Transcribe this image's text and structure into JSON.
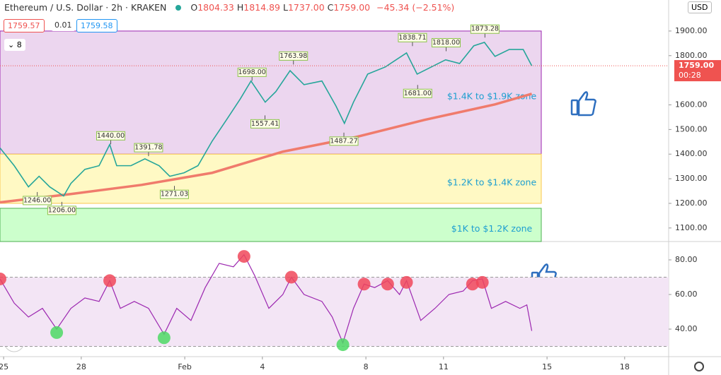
{
  "header": {
    "symbol": "Ethereum / U.S. Dollar · 2h · KRAKEN",
    "ohlc": [
      {
        "key": "O",
        "value": "1804.33"
      },
      {
        "key": "H",
        "value": "1814.89"
      },
      {
        "key": "L",
        "value": "1737.00"
      },
      {
        "key": "C",
        "value": "1759.00"
      }
    ],
    "change": "−45.34 (−2.51%)",
    "bid": "1759.57",
    "spread": "0.01",
    "ask": "1759.58",
    "interval": "8",
    "currency": "USD",
    "countdown": "00:28"
  },
  "chart_data": [
    {
      "type": "line",
      "x": [
        -0.14,
        0.41,
        0.96,
        1.37,
        1.78,
        2.32,
        2.6,
        3.14,
        3.69,
        4.1,
        4.37,
        4.92,
        5.46,
        6.01,
        6.42,
        6.97,
        7.51,
        8.06,
        8.61,
        9.15,
        9.56,
        10.11,
        10.52,
        11.07,
        11.61,
        12.3,
        12.84,
        13.17,
        13.52,
        14.07,
        14.75,
        15.57,
        15.98,
        16.53,
        17.08,
        17.62,
        18.17,
        18.58,
        18.99,
        19.54,
        20.08,
        20.41
      ],
      "series": [
        {
          "color": "#26a69a",
          "values": [
            1425,
            1353,
            1267,
            1310,
            1267,
            1230,
            1281,
            1338,
            1353,
            1439,
            1353,
            1353,
            1381,
            1353,
            1310,
            1324,
            1353,
            1453,
            1539,
            1625,
            1697,
            1611,
            1654,
            1739,
            1682,
            1697,
            1596,
            1525,
            1611,
            1725,
            1754,
            1811,
            1725,
            1754,
            1783,
            1768,
            1840,
            1854,
            1797,
            1825,
            1825,
            1759
          ]
        }
      ],
      "ma": {
        "color": "#f07b6c",
        "x": [
          -0.14,
          2.6,
          5.33,
          8.06,
          10.79,
          13.52,
          16.26,
          18.99,
          20.41
        ],
        "values": [
          1204,
          1238,
          1275,
          1324,
          1410,
          1467,
          1539,
          1602,
          1645
        ]
      },
      "zones": [
        {
          "label": "$1.4K to $1.9K zone",
          "low": 1400,
          "high": 1900,
          "color": "#ecd6ef",
          "border": "#9c27b0"
        },
        {
          "label": "$1.2K to $1.4K zone",
          "low": 1200,
          "high": 1400,
          "color": "#fff9c4",
          "border": "#f9c74f"
        },
        {
          "label": "$1K to $1.2K zone",
          "low": 1000,
          "high": 1180,
          "color": "#ccffcc",
          "border": "#4caf50"
        }
      ],
      "annotations": [
        {
          "x": 1.3,
          "value": 1246,
          "label": "1246.00"
        },
        {
          "x": 2.25,
          "value": 1206,
          "label": "1206.00"
        },
        {
          "x": 4.14,
          "value": 1440,
          "label": "1440.00"
        },
        {
          "x": 5.6,
          "value": 1391.78,
          "label": "1391.78"
        },
        {
          "x": 6.6,
          "value": 1271.03,
          "label": "1271.03"
        },
        {
          "x": 9.6,
          "value": 1698,
          "label": "1698.00"
        },
        {
          "x": 10.1,
          "value": 1557.41,
          "label": "1557.41"
        },
        {
          "x": 11.2,
          "value": 1763.98,
          "label": "1763.98"
        },
        {
          "x": 13.15,
          "value": 1487.27,
          "label": "1487.27"
        },
        {
          "x": 15.8,
          "value": 1838.71,
          "label": "1838.71"
        },
        {
          "x": 16.0,
          "value": 1681,
          "label": "1681.00"
        },
        {
          "x": 17.1,
          "value": 1818,
          "label": "1818.00"
        },
        {
          "x": 18.6,
          "value": 1873.28,
          "label": "1873.28"
        }
      ],
      "last_price": {
        "value": 1759,
        "label": "1759.00"
      },
      "ylim": [
        1045,
        2026
      ],
      "yticks": [
        {
          "value": 1100,
          "label": "1100.00"
        },
        {
          "value": 1200,
          "label": "1200.00"
        },
        {
          "value": 1300,
          "label": "1300.00"
        },
        {
          "value": 1400,
          "label": "1400.00"
        },
        {
          "value": 1500,
          "label": "1500.00"
        },
        {
          "value": 1600,
          "label": "1600.00"
        },
        {
          "value": 1800,
          "label": "1800.00"
        },
        {
          "value": 1900,
          "label": "1900.00"
        }
      ]
    },
    {
      "type": "line",
      "x": [
        -0.14,
        0.41,
        0.96,
        1.5,
        2.05,
        2.6,
        3.14,
        3.69,
        4.1,
        4.51,
        5.05,
        5.6,
        6.2,
        6.69,
        7.24,
        7.79,
        8.33,
        8.88,
        9.29,
        9.7,
        10.25,
        10.79,
        11.12,
        11.61,
        12.3,
        12.7,
        13.11,
        13.52,
        13.93,
        14.34,
        14.84,
        15.3,
        15.57,
        16.12,
        16.67,
        17.21,
        17.76,
        18.12,
        18.5,
        18.85,
        19.4,
        19.95,
        20.22,
        20.41
      ],
      "series": [
        {
          "color": "#9c27b0",
          "values": [
            69,
            55,
            47,
            52,
            40,
            52,
            58,
            56,
            68,
            52,
            56,
            52,
            37,
            52,
            45,
            64,
            78,
            76,
            83,
            71,
            52,
            60,
            70,
            60,
            56,
            47,
            32,
            52,
            66,
            64,
            68,
            60,
            68,
            45,
            52,
            60,
            62,
            68,
            69,
            52,
            56,
            52,
            54,
            39
          ]
        }
      ],
      "band": {
        "low": 30,
        "high": 70,
        "color": "#f3e5f5"
      },
      "signals": [
        {
          "x": -0.14,
          "value": 69,
          "color": "#f0485a"
        },
        {
          "x": 2.05,
          "value": 38,
          "color": "#4cd964"
        },
        {
          "x": 4.1,
          "value": 68,
          "color": "#f0485a"
        },
        {
          "x": 6.2,
          "value": 35,
          "color": "#4cd964"
        },
        {
          "x": 9.29,
          "value": 82,
          "color": "#f0485a"
        },
        {
          "x": 11.12,
          "value": 70,
          "color": "#f0485a"
        },
        {
          "x": 13.11,
          "value": 31,
          "color": "#4cd964"
        },
        {
          "x": 13.93,
          "value": 66,
          "color": "#f0485a"
        },
        {
          "x": 14.84,
          "value": 66,
          "color": "#f0485a"
        },
        {
          "x": 15.57,
          "value": 67,
          "color": "#f0485a"
        },
        {
          "x": 18.12,
          "value": 66,
          "color": "#f0485a"
        },
        {
          "x": 18.5,
          "value": 67,
          "color": "#f0485a"
        }
      ],
      "xlim": [
        -0.14,
        25.7
      ],
      "xticks": [
        {
          "value": 0,
          "label": "25"
        },
        {
          "value": 3,
          "label": "28"
        },
        {
          "value": 7,
          "label": "Feb"
        },
        {
          "value": 10,
          "label": "4"
        },
        {
          "value": 14,
          "label": "8"
        },
        {
          "value": 17,
          "label": "11"
        },
        {
          "value": 21,
          "label": "15"
        },
        {
          "value": 24,
          "label": "18"
        }
      ],
      "ylim": [
        24.1,
        90.6
      ],
      "yticks": [
        {
          "value": 40,
          "label": "40.00"
        },
        {
          "value": 60,
          "label": "60.00"
        },
        {
          "value": 80,
          "label": "80.00"
        }
      ]
    }
  ]
}
